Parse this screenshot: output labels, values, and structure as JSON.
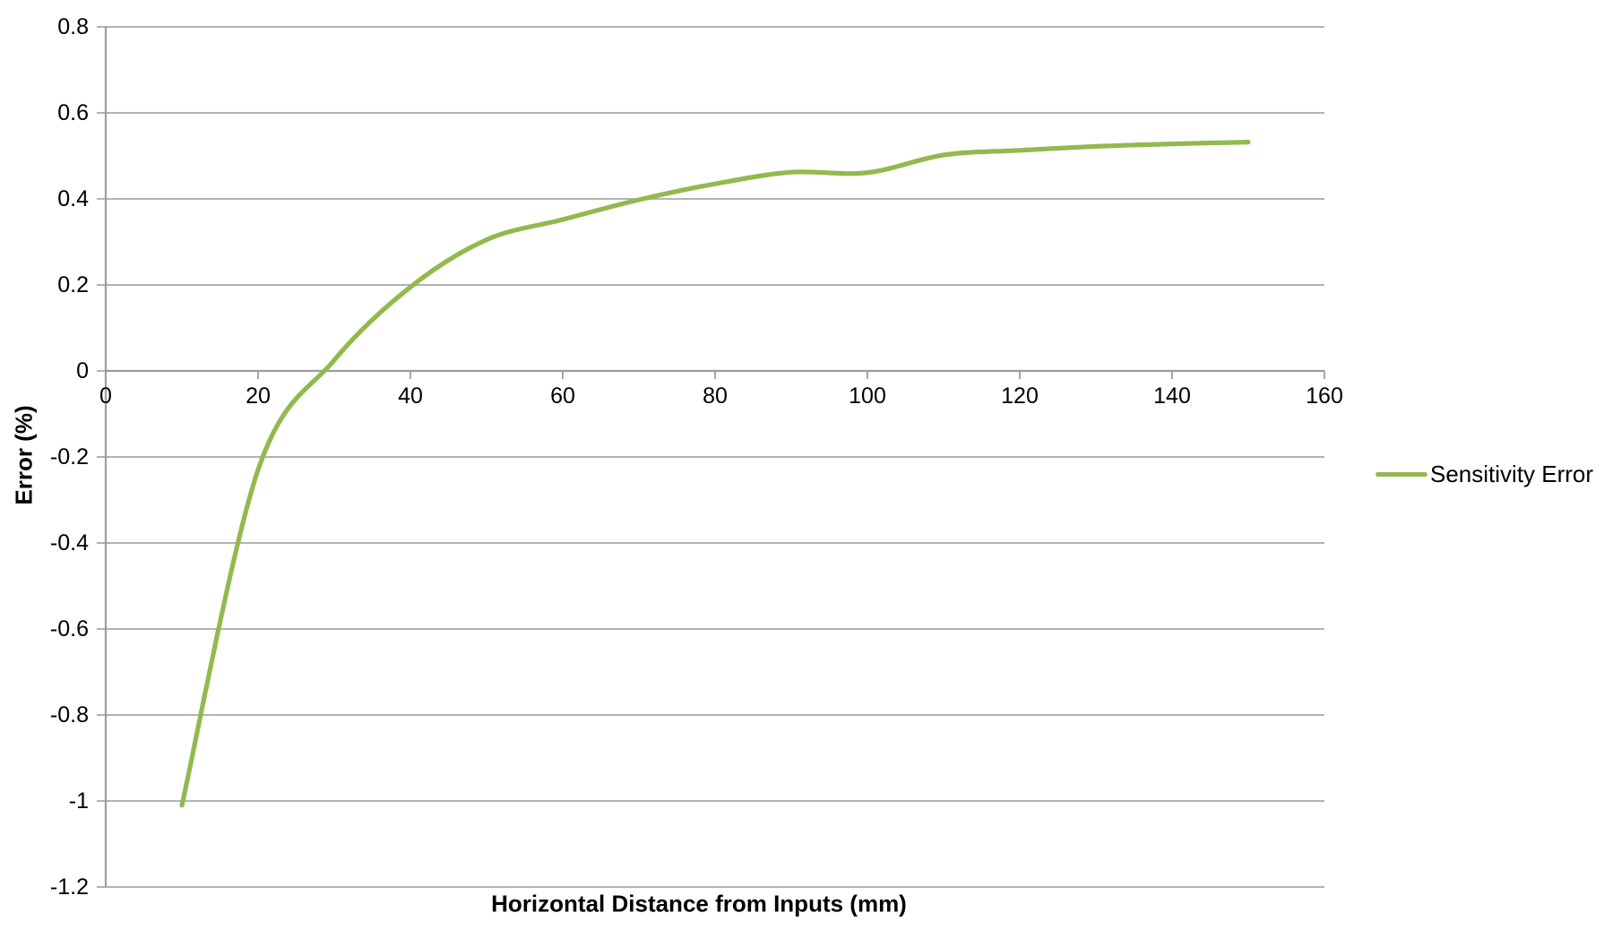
{
  "chart_data": {
    "type": "line",
    "title": "",
    "xlabel": "Horizontal Distance from Inputs (mm)",
    "ylabel": "Error (%)",
    "xlim": [
      0,
      160
    ],
    "ylim": [
      -1.2,
      0.8
    ],
    "x_ticks": [
      0,
      20,
      40,
      60,
      80,
      100,
      120,
      140,
      160
    ],
    "x_tick_labels": [
      "0",
      "20",
      "40",
      "60",
      "80",
      "100",
      "120",
      "140",
      "160"
    ],
    "y_ticks": [
      0.8,
      0.6,
      0.4,
      0.2,
      0,
      -0.2,
      -0.4,
      -0.6,
      -0.8,
      -1,
      -1.2
    ],
    "y_tick_labels": [
      "0.8",
      "0.6",
      "0.4",
      "0.2",
      "0",
      "-0.2",
      "-0.4",
      "-0.6",
      "-0.8",
      "-1",
      "-1.2"
    ],
    "grid": "horizontal-only",
    "legend_position": "right-middle",
    "series": [
      {
        "name": "Sensitivity Error",
        "color": "#92B94E",
        "smooth": true,
        "x": [
          10,
          20,
          30,
          40,
          50,
          60,
          70,
          80,
          90,
          100,
          110,
          120,
          130,
          140,
          150
        ],
        "y": [
          -1.01,
          -0.23,
          0.025,
          0.195,
          0.305,
          0.352,
          0.398,
          0.435,
          0.462,
          0.461,
          0.502,
          0.513,
          0.522,
          0.528,
          0.532
        ]
      }
    ]
  },
  "legend": {
    "label": "Sensitivity Error"
  },
  "colors": {
    "series_line": "#92B94E",
    "gridline": "#A8A8A8",
    "axis_line": "#9D9D9D",
    "text": "#000000",
    "background": "#FFFFFF"
  }
}
